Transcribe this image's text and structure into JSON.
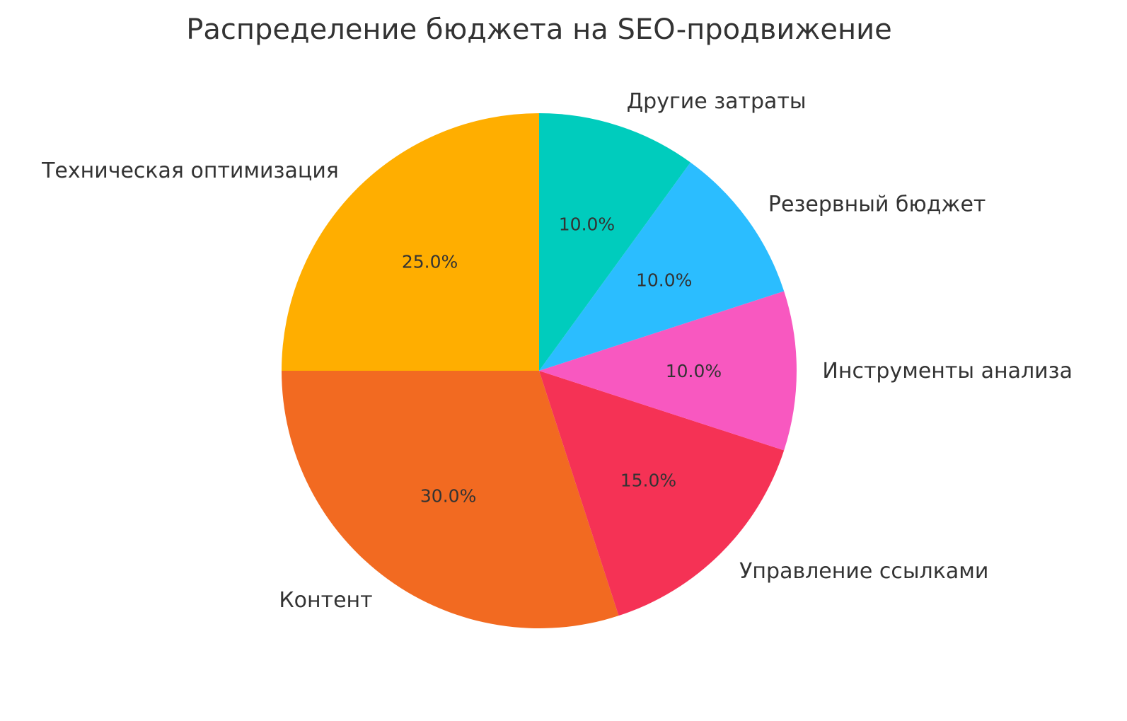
{
  "chart_data": {
    "type": "pie",
    "title": "Распределение бюджета на SEO-продвижение",
    "start_angle_deg": 90,
    "direction": "counterclockwise",
    "categories": [
      "Техническая оптимизация",
      "Контент",
      "Управление ссылками",
      "Инструменты анализа",
      "Резервный бюджет",
      "Другие затраты"
    ],
    "values": [
      25,
      30,
      15,
      10,
      10,
      10
    ],
    "pct_labels": [
      "25.0%",
      "30.0%",
      "15.0%",
      "10.0%",
      "10.0%",
      "10.0%"
    ],
    "colors": [
      "#ffae00",
      "#f26a21",
      "#f53255",
      "#f858c0",
      "#2bbdff",
      "#00ccbd"
    ]
  }
}
